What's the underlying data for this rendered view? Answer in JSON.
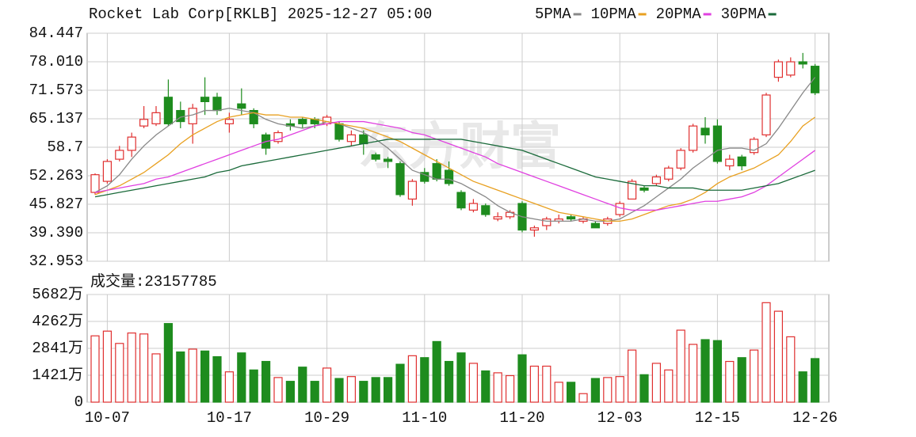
{
  "chart_data": [
    {
      "type": "candlestick",
      "title": "Rocket Lab Corp[RKLB] 2025-12-27 05:00",
      "watermark": "东方财富",
      "up_color": "#e03030",
      "down_color": "#1e8c1e",
      "grid": true,
      "ylim": [
        32.953,
        84.447
      ],
      "yticks": [
        32.953,
        {
          "value": 39.39,
          "label": "39.390"
        },
        45.827,
        52.263,
        58.7,
        65.137,
        71.573,
        {
          "value": 78.01,
          "label": "78.010"
        },
        84.447
      ],
      "open": [
        48.5,
        51,
        56,
        58,
        63.5,
        64,
        70,
        67,
        64,
        70,
        70,
        64,
        68.5,
        67,
        61.5,
        60,
        64,
        65,
        65,
        64,
        64,
        60,
        61.5,
        57,
        56,
        55,
        47,
        53,
        55,
        53.5,
        48.5,
        44.5,
        45.5,
        42.5,
        43,
        46,
        40,
        41,
        42,
        43,
        42,
        41.5,
        41.5,
        43.5,
        47,
        49.5,
        50.5,
        51.5,
        54,
        58,
        63,
        63.5,
        54.5,
        56.5,
        57.5,
        61.5,
        74.5,
        75,
        78,
        77
      ],
      "high": [
        52.8,
        56,
        59,
        62,
        68,
        68,
        74,
        69,
        68.5,
        74.5,
        71,
        66.5,
        72,
        67.5,
        62,
        62.5,
        65,
        65.5,
        65.5,
        66,
        64.5,
        62.5,
        62.5,
        57.5,
        56.5,
        55.5,
        51.5,
        54,
        56,
        55.5,
        49,
        47,
        46,
        44,
        44.5,
        46.5,
        41,
        43,
        43.5,
        43.5,
        43,
        42,
        43,
        46.5,
        51.5,
        50,
        52.5,
        54.5,
        58.5,
        64,
        65.5,
        65,
        57,
        57,
        61,
        71,
        78.5,
        79,
        80,
        77.5
      ],
      "low": [
        48,
        50.5,
        55.5,
        56.5,
        63,
        63.5,
        63.5,
        63,
        59.5,
        66,
        66,
        62,
        66,
        63,
        57,
        59.5,
        62.5,
        63,
        63,
        63.5,
        60,
        59,
        57,
        55.5,
        54,
        47.5,
        45.5,
        50.5,
        51,
        50,
        44.5,
        44,
        43,
        42,
        42.5,
        39.5,
        38.5,
        40,
        41.5,
        42,
        41.5,
        40.5,
        41,
        43,
        47,
        48.5,
        50,
        51,
        53.5,
        57.5,
        59.5,
        55,
        53.5,
        53.5,
        57,
        61,
        73.5,
        74.5,
        76.5,
        70.5
      ],
      "close": [
        52.5,
        55.5,
        58,
        61,
        65,
        66.5,
        64,
        64.5,
        67.5,
        69,
        67,
        65,
        67.5,
        64,
        58.5,
        62,
        63.5,
        64,
        64,
        65.5,
        60.5,
        61.5,
        59.5,
        56,
        55.5,
        48,
        51,
        51,
        51.5,
        50.5,
        45,
        46,
        43.5,
        43,
        44,
        40,
        40.5,
        42.5,
        42.5,
        42.5,
        42.5,
        40.5,
        42.5,
        46,
        51,
        49,
        52,
        54,
        58,
        63.5,
        61.5,
        55.5,
        56,
        54.5,
        60.5,
        70.5,
        78,
        78,
        77.5,
        71
      ],
      "series": [
        {
          "name": "5PMA",
          "color": "#888888",
          "values": [
            48.5,
            50,
            52.5,
            56,
            59,
            61.5,
            63.5,
            65.5,
            66,
            67,
            67,
            67.5,
            67,
            66.5,
            65,
            64,
            63.5,
            63,
            63.5,
            64.5,
            64,
            63,
            62,
            60.5,
            58.5,
            56,
            53.5,
            52.5,
            51.5,
            51.5,
            50.5,
            49,
            47.5,
            45.5,
            44,
            43,
            42.5,
            42,
            42,
            42,
            42.5,
            42,
            42,
            42.5,
            44,
            45.5,
            47.5,
            49.5,
            51.5,
            54,
            56,
            58,
            58.5,
            58.5,
            58,
            59.5,
            63,
            67,
            71,
            74.5
          ]
        },
        {
          "name": "10PMA",
          "color": "#e8a020",
          "values": [
            48,
            49,
            50,
            51.5,
            53,
            55,
            57,
            59.5,
            61.5,
            63,
            64.5,
            65.5,
            66,
            66.5,
            66,
            66,
            65.5,
            65.5,
            65,
            64.5,
            64,
            63.5,
            63,
            62,
            61,
            60,
            58.5,
            57,
            55.5,
            54,
            52.5,
            51,
            50,
            49,
            48,
            47,
            46,
            45,
            44,
            43.5,
            43,
            42.5,
            42,
            42,
            42.5,
            43.5,
            44.5,
            45.5,
            46,
            47,
            48.5,
            50.5,
            52,
            53,
            54,
            55.5,
            57,
            60,
            63.5,
            65.5
          ]
        },
        {
          "name": "20PMA",
          "color": "#e040e0",
          "values": [
            48.5,
            49,
            49.5,
            50,
            50.5,
            51.5,
            52,
            53,
            54,
            55,
            56,
            57,
            58,
            59,
            60,
            60.5,
            61.5,
            62.5,
            63.5,
            64,
            64.5,
            64.5,
            64.5,
            64,
            63.5,
            63,
            62,
            61.5,
            60.5,
            59.5,
            58.5,
            57.5,
            56.5,
            55,
            54,
            53,
            52,
            51,
            50,
            49,
            48,
            47,
            46,
            45,
            44.5,
            44.5,
            44.5,
            45,
            45.5,
            46,
            46.5,
            46.5,
            47,
            47.5,
            48.5,
            50,
            52,
            54,
            56,
            58
          ]
        },
        {
          "name": "30PMA",
          "color": "#1a6a3a",
          "values": [
            47.5,
            48,
            48.5,
            49,
            49.5,
            50,
            50.5,
            51,
            51.5,
            52,
            53,
            53.5,
            54.5,
            55,
            55.5,
            56,
            56.5,
            57,
            57.5,
            58,
            58.5,
            59,
            59.5,
            60,
            60.5,
            60.5,
            60.5,
            60.5,
            60.5,
            60.5,
            60.5,
            60,
            59.5,
            59,
            58.5,
            58,
            57,
            56,
            55,
            54,
            53,
            52,
            51.5,
            51,
            50.5,
            50,
            50,
            49.5,
            49.5,
            49.5,
            49,
            49,
            49,
            49,
            49.5,
            50,
            50.5,
            51.5,
            52.5,
            53.5
          ]
        }
      ]
    },
    {
      "type": "bar",
      "title": "成交量:23157785",
      "grid": true,
      "ylim": [
        0,
        5682
      ],
      "yticks": [
        0,
        {
          "value": 1421,
          "label": "1421万"
        },
        {
          "value": 2841,
          "label": "2841万"
        },
        {
          "value": 4262,
          "label": "4262万"
        },
        {
          "value": 5682,
          "label": "5682万"
        }
      ],
      "categories": [
        null,
        "10-07",
        null,
        null,
        null,
        null,
        null,
        null,
        null,
        null,
        null,
        "10-17",
        null,
        null,
        null,
        null,
        null,
        null,
        null,
        "10-29",
        null,
        null,
        null,
        null,
        null,
        null,
        null,
        "11-10",
        null,
        null,
        null,
        null,
        null,
        null,
        null,
        "11-20",
        null,
        null,
        null,
        null,
        null,
        null,
        null,
        "12-03",
        null,
        null,
        null,
        null,
        null,
        null,
        null,
        "12-15",
        null,
        null,
        null,
        null,
        null,
        null,
        null,
        "12-26"
      ],
      "values": [
        3500,
        3750,
        3100,
        3650,
        3600,
        2550,
        4150,
        2650,
        2800,
        2700,
        2400,
        1600,
        2600,
        1700,
        2150,
        1300,
        1100,
        1850,
        1100,
        1800,
        1250,
        1350,
        1100,
        1300,
        1300,
        2000,
        2450,
        2350,
        3200,
        2150,
        2600,
        2050,
        1650,
        1550,
        1400,
        2500,
        1900,
        1900,
        1050,
        1050,
        450,
        1250,
        1300,
        1350,
        2750,
        1450,
        2050,
        1700,
        3800,
        3050,
        3300,
        3250,
        2150,
        2350,
        2750,
        5250,
        4800,
        3450,
        1600,
        2300
      ]
    }
  ]
}
